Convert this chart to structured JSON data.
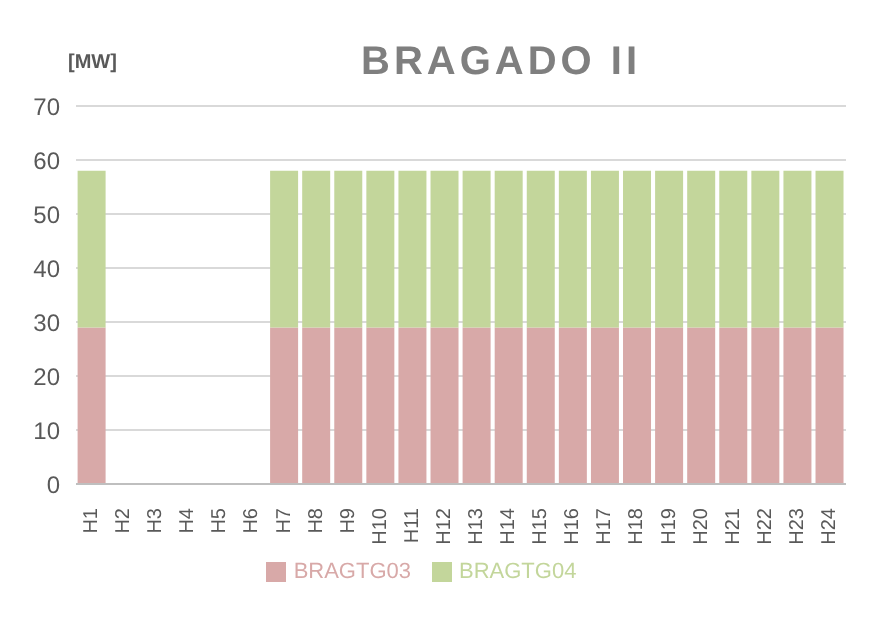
{
  "chart_data": {
    "type": "bar",
    "title": "BRAGADO II",
    "ylabel": "[MW]",
    "categories": [
      "H1",
      "H2",
      "H3",
      "H4",
      "H5",
      "H6",
      "H7",
      "H8",
      "H9",
      "H10",
      "H11",
      "H12",
      "H13",
      "H14",
      "H15",
      "H16",
      "H17",
      "H18",
      "H19",
      "H20",
      "H21",
      "H22",
      "H23",
      "H24"
    ],
    "series": [
      {
        "name": "BRAGTG03",
        "color": "#d8a9a8",
        "values": [
          29,
          0,
          0,
          0,
          0,
          0,
          29,
          29,
          29,
          29,
          29,
          29,
          29,
          29,
          29,
          29,
          29,
          29,
          29,
          29,
          29,
          29,
          29,
          29
        ]
      },
      {
        "name": "BRAGTG04",
        "color": "#c3d69b",
        "values": [
          29,
          0,
          0,
          0,
          0,
          0,
          29,
          29,
          29,
          29,
          29,
          29,
          29,
          29,
          29,
          29,
          29,
          29,
          29,
          29,
          29,
          29,
          29,
          29
        ]
      }
    ],
    "stacked": true,
    "ylim": [
      0,
      70
    ],
    "yticks": [
      0,
      10,
      20,
      30,
      40,
      50,
      60,
      70
    ],
    "grid": "y",
    "legend": "bottom"
  }
}
